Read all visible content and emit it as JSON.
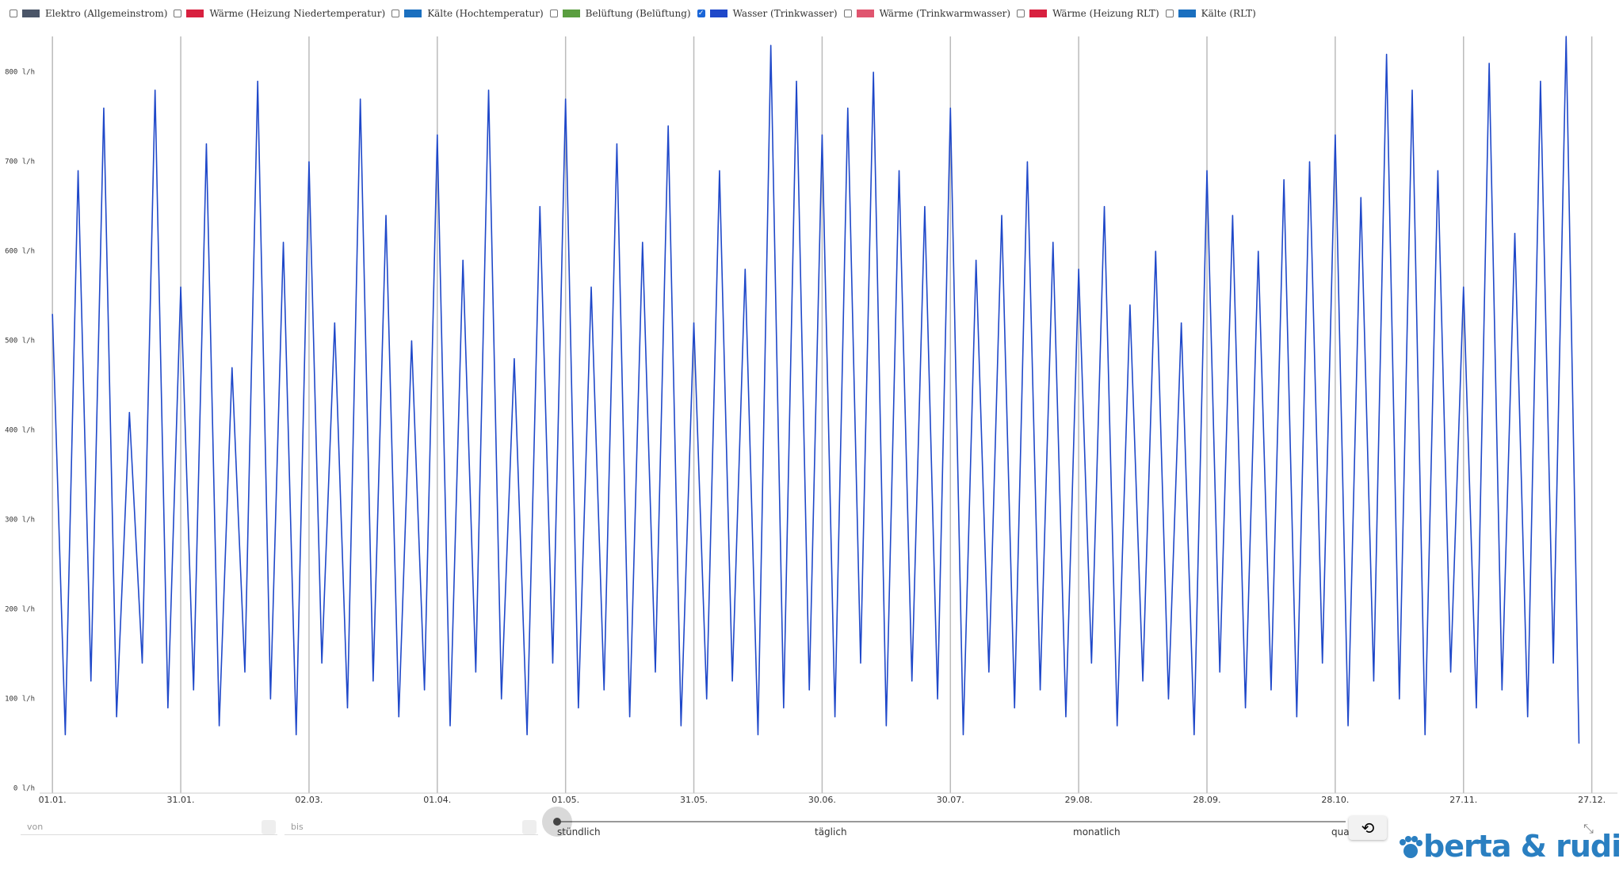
{
  "legend_items": [
    {
      "name": "Elektro (Allgemeinstrom)",
      "color": "#4a5568",
      "checked": false
    },
    {
      "name": "Wärme (Heizung Niedertemperatur)",
      "color": "#d8203f",
      "checked": false
    },
    {
      "name": "Kälte (Hochtemperatur)",
      "color": "#1a6fbf",
      "checked": false
    },
    {
      "name": "Belüftung (Belüftung)",
      "color": "#5a9e3f",
      "checked": false
    },
    {
      "name": "Wasser (Trinkwasser)",
      "color": "#1f48c9",
      "checked": true
    },
    {
      "name": "Wärme (Trinkwarmwasser)",
      "color": "#e0556f",
      "checked": false
    },
    {
      "name": "Wärme (Heizung RLT)",
      "color": "#d8203f",
      "checked": false
    },
    {
      "name": "Kälte (RLT)",
      "color": "#1a6fbf",
      "checked": false
    }
  ],
  "chart_data": {
    "type": "line",
    "grid": true,
    "x": [
      0,
      3,
      6,
      9,
      12,
      15,
      18,
      21,
      24,
      27,
      30,
      33,
      36,
      39,
      42,
      45,
      48,
      51,
      54,
      57,
      60,
      63,
      66,
      69,
      72,
      75,
      78,
      81,
      84,
      87,
      90,
      93,
      96,
      99,
      102,
      105,
      108,
      111,
      114,
      117,
      120,
      123,
      126,
      129,
      132,
      135,
      138,
      141,
      144,
      147,
      150,
      153,
      156,
      159,
      162,
      165,
      168,
      171,
      174,
      177,
      180,
      183,
      186,
      189,
      192,
      195,
      198,
      201,
      204,
      207,
      210,
      213,
      216,
      219,
      222,
      225,
      228,
      231,
      234,
      237,
      240,
      243,
      246,
      249,
      252,
      255,
      258,
      261,
      264,
      267,
      270,
      273,
      276,
      279,
      282,
      285,
      288,
      291,
      294,
      297,
      300,
      303,
      306,
      309,
      312,
      315,
      318,
      321,
      324,
      327,
      330,
      333,
      336,
      339,
      342,
      345,
      348,
      351,
      354,
      357
    ],
    "series": [
      {
        "name": "Wasser (Trinkwasser)",
        "color": "#1f48c9",
        "values": [
          530,
          60,
          690,
          120,
          760,
          80,
          420,
          140,
          780,
          90,
          560,
          110,
          720,
          70,
          470,
          130,
          790,
          100,
          610,
          60,
          700,
          140,
          520,
          90,
          770,
          120,
          640,
          80,
          500,
          110,
          730,
          70,
          590,
          130,
          780,
          100,
          480,
          60,
          650,
          140,
          770,
          90,
          560,
          110,
          720,
          80,
          610,
          130,
          740,
          70,
          520,
          100,
          690,
          120,
          580,
          60,
          830,
          90,
          790,
          110,
          730,
          80,
          760,
          140,
          800,
          70,
          690,
          120,
          650,
          100,
          760,
          60,
          590,
          130,
          640,
          90,
          700,
          110,
          610,
          80,
          580,
          140,
          650,
          70,
          540,
          120,
          600,
          100,
          520,
          60,
          690,
          130,
          640,
          90,
          600,
          110,
          680,
          80,
          700,
          140,
          730,
          70,
          660,
          120,
          820,
          100,
          780,
          60,
          690,
          130,
          560,
          90,
          810,
          110,
          620,
          80,
          790,
          140,
          840,
          50
        ]
      }
    ],
    "xlim": [
      -3,
      366
    ],
    "xticks": [
      {
        "value": 0,
        "label": "01.01."
      },
      {
        "value": 30,
        "label": "31.01."
      },
      {
        "value": 60,
        "label": "02.03."
      },
      {
        "value": 90,
        "label": "01.04."
      },
      {
        "value": 120,
        "label": "01.05."
      },
      {
        "value": 150,
        "label": "31.05."
      },
      {
        "value": 180,
        "label": "30.06."
      },
      {
        "value": 210,
        "label": "30.07."
      },
      {
        "value": 240,
        "label": "29.08."
      },
      {
        "value": 270,
        "label": "28.09."
      },
      {
        "value": 300,
        "label": "28.10."
      },
      {
        "value": 330,
        "label": "27.11."
      },
      {
        "value": 360,
        "label": "27.12."
      }
    ],
    "ylim": [
      0,
      840
    ],
    "yticks": [
      {
        "value": 0,
        "label": "0 l/h"
      },
      {
        "value": 100,
        "label": "100 l/h"
      },
      {
        "value": 200,
        "label": "200 l/h"
      },
      {
        "value": 300,
        "label": "300 l/h"
      },
      {
        "value": 400,
        "label": "400 l/h"
      },
      {
        "value": 500,
        "label": "500 l/h"
      },
      {
        "value": 600,
        "label": "600 l/h"
      },
      {
        "value": 700,
        "label": "700 l/h"
      },
      {
        "value": 800,
        "label": "800 l/h"
      }
    ]
  },
  "controls": {
    "from_placeholder": "von",
    "to_placeholder": "bis",
    "intervals": [
      "stündlich",
      "täglich",
      "monatlich",
      "quar"
    ],
    "logo": "berta & rudi"
  }
}
